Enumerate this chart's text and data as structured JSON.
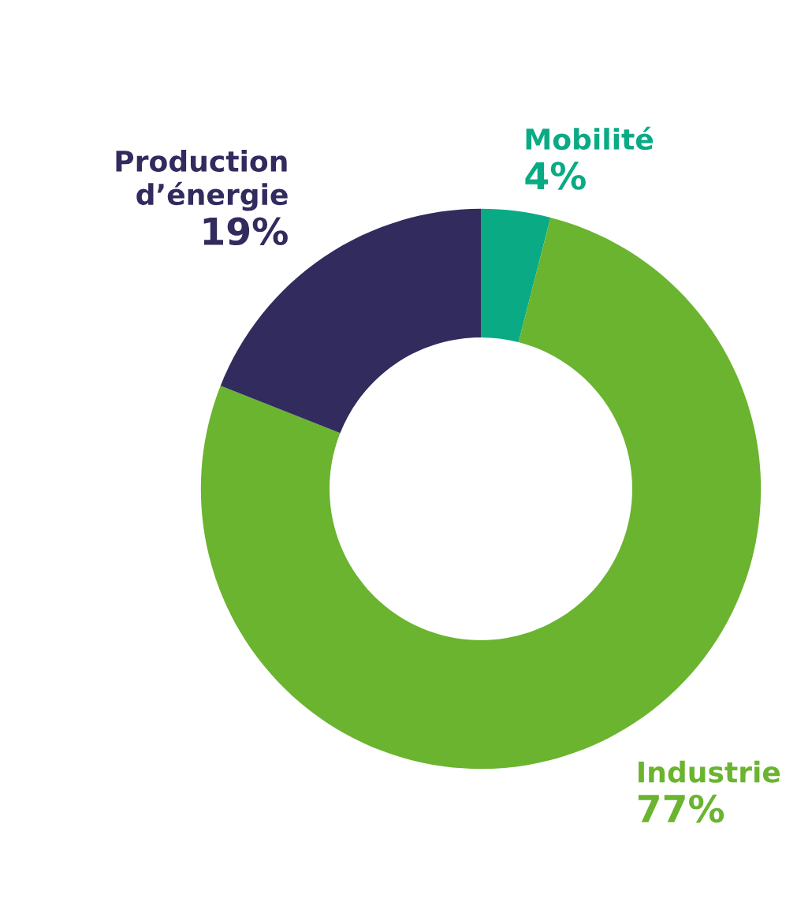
{
  "chart_data": {
    "type": "donut",
    "categories": [
      "Mobilité",
      "Industrie",
      "Production\nd’énergie"
    ],
    "values": [
      4,
      77,
      19
    ],
    "colors": [
      "#0aab84",
      "#6ab42f",
      "#312b5e"
    ],
    "value_labels": [
      "4%",
      "77%",
      "19%"
    ],
    "legend": false
  }
}
